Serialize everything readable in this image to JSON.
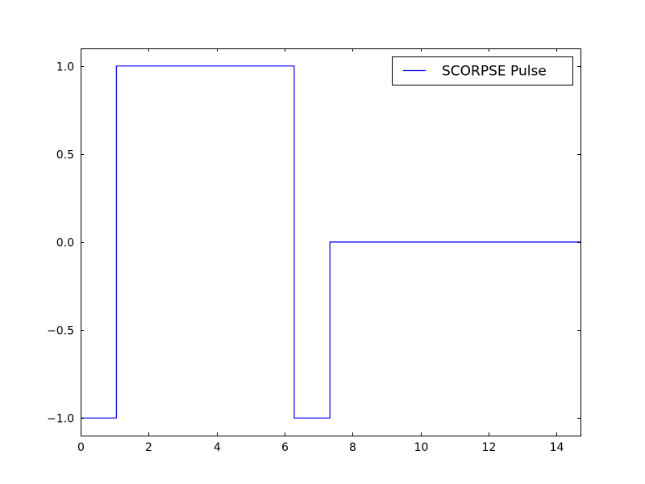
{
  "chart_data": {
    "type": "line",
    "title": "",
    "xlabel": "",
    "ylabel": "",
    "xlim": [
      0,
      14.7
    ],
    "ylim": [
      -1.1,
      1.1
    ],
    "x_ticks": [
      0,
      2,
      4,
      6,
      8,
      10,
      12,
      14
    ],
    "x_tick_labels": [
      "0",
      "2",
      "4",
      "6",
      "8",
      "10",
      "12",
      "14"
    ],
    "y_ticks": [
      1.0,
      0.5,
      0.0,
      -0.5,
      -1.0
    ],
    "y_tick_labels": [
      "1.0",
      "0.5",
      "0.0",
      "−0.5",
      "−1.0"
    ],
    "grid": false,
    "legend_position": "top-right",
    "line_style": "step",
    "series": [
      {
        "name": "SCORPSE Pulse",
        "color": "#0000ff",
        "x": [
          0,
          1.05,
          1.05,
          6.28,
          6.28,
          7.33,
          7.33,
          14.7
        ],
        "y": [
          -1.0,
          -1.0,
          1.0,
          1.0,
          -1.0,
          -1.0,
          0.0,
          0.0
        ]
      }
    ]
  }
}
